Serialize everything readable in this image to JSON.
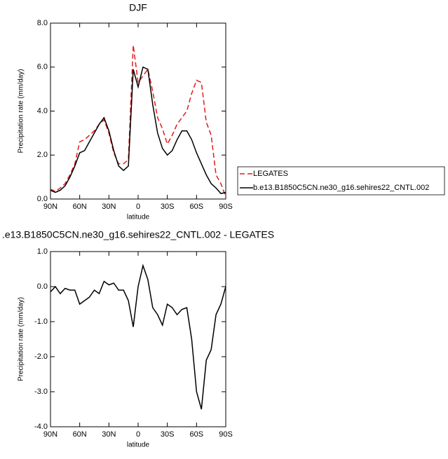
{
  "chart_data": [
    {
      "type": "line",
      "title": "DJF",
      "xlabel": "latitude",
      "ylabel": "Precipitation rate (mm/day)",
      "x": [
        90,
        85,
        80,
        75,
        70,
        65,
        60,
        55,
        50,
        45,
        40,
        35,
        30,
        25,
        20,
        15,
        10,
        5,
        0,
        -5,
        -10,
        -15,
        -20,
        -25,
        -30,
        -35,
        -40,
        -45,
        -50,
        -55,
        -60,
        -65,
        -70,
        -75,
        -80,
        -85,
        -90
      ],
      "series": [
        {
          "name": "LEGATES",
          "color": "#e41a1c",
          "line_style": "dashed",
          "values": [
            0.45,
            0.35,
            0.5,
            0.7,
            1.1,
            1.6,
            2.6,
            2.7,
            2.9,
            3.1,
            3.4,
            3.6,
            3.0,
            2.1,
            1.6,
            1.6,
            1.8,
            7.0,
            5.3,
            5.6,
            5.9,
            4.9,
            3.7,
            3.2,
            2.5,
            2.9,
            3.4,
            3.7,
            4.0,
            4.8,
            5.4,
            5.3,
            3.5,
            2.9,
            1.1,
            0.7,
            0.1
          ]
        },
        {
          "name": "b.e13.B1850C5CN.ne30_g16.sehires22_CNTL.002",
          "color": "#000000",
          "line_style": "solid",
          "values": [
            0.4,
            0.3,
            0.4,
            0.6,
            1.0,
            1.5,
            2.1,
            2.2,
            2.6,
            3.0,
            3.4,
            3.7,
            3.1,
            2.2,
            1.5,
            1.3,
            1.5,
            5.9,
            5.1,
            6.0,
            5.9,
            4.3,
            3.0,
            2.3,
            2.0,
            2.2,
            2.7,
            3.1,
            3.1,
            2.7,
            2.1,
            1.6,
            1.1,
            0.7,
            0.5,
            0.25,
            0.3
          ]
        }
      ],
      "xlim": [
        90,
        -90
      ],
      "xticks": [
        {
          "value": 90,
          "label": "90N"
        },
        {
          "value": 60,
          "label": "60N"
        },
        {
          "value": 30,
          "label": "30N"
        },
        0,
        {
          "value": -30,
          "label": "30S"
        },
        {
          "value": -60,
          "label": "60S"
        },
        {
          "value": -90,
          "label": "90S"
        }
      ],
      "ylim": [
        0,
        8
      ],
      "yticks": [
        {
          "value": 0,
          "label": "0.0"
        },
        {
          "value": 2,
          "label": "2.0"
        },
        {
          "value": 4,
          "label": "4.0"
        },
        {
          "value": 6,
          "label": "6.0"
        },
        {
          "value": 8,
          "label": "8.0"
        }
      ],
      "legend": "right"
    },
    {
      "type": "line",
      "title": ".e13.B1850C5CN.ne30_g16.sehires22_CNTL.002 - LEGATES",
      "xlabel": "latitude",
      "ylabel": "Precipitation rate (mm/day)",
      "x": [
        90,
        85,
        80,
        75,
        70,
        65,
        60,
        55,
        50,
        45,
        40,
        35,
        30,
        25,
        20,
        15,
        10,
        5,
        0,
        -5,
        -10,
        -15,
        -20,
        -25,
        -30,
        -35,
        -40,
        -45,
        -50,
        -55,
        -60,
        -65,
        -70,
        -75,
        -80,
        -85,
        -90
      ],
      "series": [
        {
          "color": "#000000",
          "line_style": "solid",
          "values": [
            -0.15,
            0.0,
            -0.2,
            -0.05,
            -0.1,
            -0.1,
            -0.5,
            -0.4,
            -0.3,
            -0.1,
            -0.2,
            0.15,
            0.05,
            0.1,
            -0.1,
            -0.1,
            -0.4,
            -1.15,
            0.0,
            0.6,
            0.2,
            -0.6,
            -0.8,
            -1.1,
            -0.5,
            -0.6,
            -0.8,
            -0.65,
            -0.6,
            -1.5,
            -3.0,
            -3.5,
            -2.1,
            -1.8,
            -0.8,
            -0.5,
            0.0
          ]
        }
      ],
      "xlim": [
        90,
        -90
      ],
      "xticks": [
        {
          "value": 90,
          "label": "90N"
        },
        {
          "value": 60,
          "label": "60N"
        },
        {
          "value": 30,
          "label": "30N"
        },
        0,
        {
          "value": -30,
          "label": "30S"
        },
        {
          "value": -60,
          "label": "60S"
        },
        {
          "value": -90,
          "label": "90S"
        }
      ],
      "ylim": [
        -4,
        1
      ],
      "yticks": [
        {
          "value": -4,
          "label": "-4.0"
        },
        {
          "value": -3,
          "label": "-3.0"
        },
        {
          "value": -2,
          "label": "-2.0"
        },
        {
          "value": -1,
          "label": "-1.0"
        },
        {
          "value": 0,
          "label": "0.0"
        },
        {
          "value": 1,
          "label": "1.0"
        }
      ]
    }
  ]
}
